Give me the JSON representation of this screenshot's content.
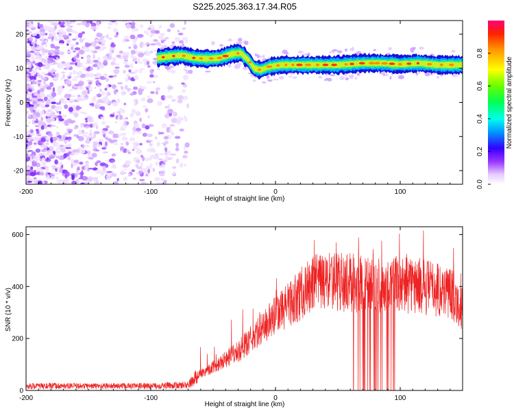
{
  "title": "S225.2025.363.17.34.R05",
  "chart_data": [
    {
      "type": "heatmap",
      "xlabel": "Height of straight line (km)",
      "ylabel": "Frequency (Hz)",
      "xlim": [
        -200,
        150
      ],
      "ylim": [
        -24,
        24
      ],
      "xticks": [
        -200,
        -100,
        0,
        100
      ],
      "yticks": [
        -20,
        -10,
        0,
        10,
        20
      ],
      "colorbar": {
        "label": "Normalized spectral amplitude",
        "range": [
          0,
          1
        ],
        "ticks": [
          0.0,
          0.2,
          0.4,
          0.6,
          0.8
        ],
        "tick_labels": [
          "0.0",
          "0.2",
          "0.4",
          "0.6",
          "0.8"
        ]
      },
      "noise_region": {
        "x": [
          -200,
          -70
        ],
        "y": [
          -24,
          24
        ]
      },
      "ridge": {
        "x": [
          -95,
          -85,
          -75,
          -65,
          -55,
          -45,
          -35,
          -28,
          -22,
          -17,
          -12,
          -5,
          5,
          15,
          30,
          50,
          70,
          85,
          100,
          115,
          130,
          150
        ],
        "y": [
          13,
          13.5,
          13.8,
          13,
          12.8,
          13,
          14.2,
          14.5,
          12.5,
          10,
          9.5,
          10.5,
          11,
          11,
          11,
          11,
          11.5,
          11.5,
          11.2,
          11.5,
          11,
          11
        ]
      }
    },
    {
      "type": "line",
      "xlabel": "Height of straight line (km)",
      "ylabel": "SNR (10 * v/v)",
      "xlim": [
        -200,
        150
      ],
      "ylim": [
        0,
        630
      ],
      "xticks": [
        -200,
        -100,
        0,
        100
      ],
      "yticks": [
        0,
        200,
        400,
        600
      ],
      "color": "#ee2222",
      "envelope": {
        "x": [
          -200,
          -150,
          -100,
          -70,
          -62,
          -50,
          -30,
          -10,
          10,
          30,
          50,
          70,
          90,
          100,
          120,
          140,
          150
        ],
        "y": [
          18,
          18,
          18,
          22,
          60,
          90,
          150,
          240,
          330,
          410,
          420,
          410,
          400,
          410,
          400,
          380,
          320
        ]
      }
    }
  ]
}
